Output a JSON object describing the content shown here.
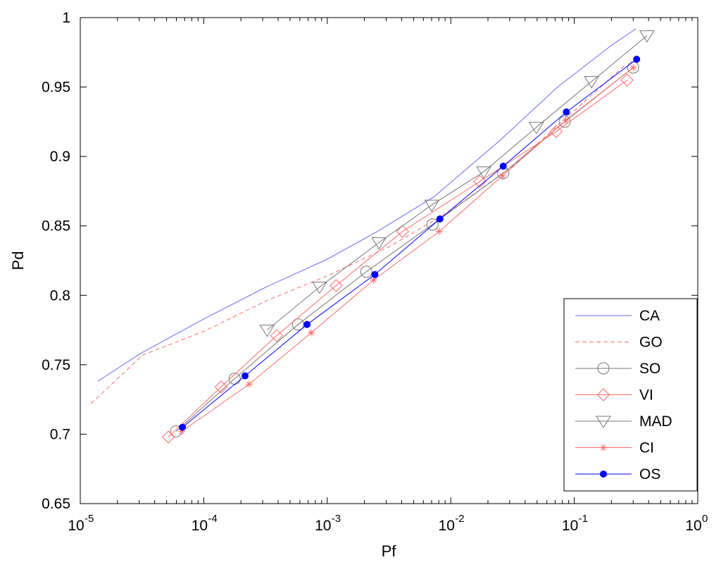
{
  "chart_data": {
    "type": "line",
    "title": "",
    "xlabel": "Pf",
    "ylabel": "Pd",
    "x_scale": "log",
    "xlim": [
      1e-05,
      1
    ],
    "ylim": [
      0.65,
      1
    ],
    "x_ticks": [
      1e-05,
      0.0001,
      0.001,
      0.01,
      0.1,
      1
    ],
    "x_tick_labels": [
      {
        "base": "10",
        "exp": "-5"
      },
      {
        "base": "10",
        "exp": "-4"
      },
      {
        "base": "10",
        "exp": "-3"
      },
      {
        "base": "10",
        "exp": "-2"
      },
      {
        "base": "10",
        "exp": "-1"
      },
      {
        "base": "10",
        "exp": "0"
      }
    ],
    "y_ticks": [
      0.65,
      0.7,
      0.75,
      0.8,
      0.85,
      0.9,
      0.95,
      1
    ],
    "y_tick_labels": [
      "0.65",
      "0.7",
      "0.75",
      "0.8",
      "0.85",
      "0.9",
      "0.95",
      "1"
    ],
    "grid": false,
    "legend_position": "bottom-right",
    "series": [
      {
        "name": "CA",
        "color": "#6a6aff",
        "dash": "",
        "marker": "none",
        "x": [
          1.38e-05,
          3.06e-05,
          0.0001,
          0.00032,
          0.001,
          0.00255,
          0.00733,
          0.0246,
          0.0733,
          0.2,
          0.316
        ],
        "y": [
          0.738,
          0.758,
          0.783,
          0.806,
          0.826,
          0.846,
          0.871,
          0.911,
          0.95,
          0.98,
          0.992
        ]
      },
      {
        "name": "GO",
        "color": "#ff6a6a",
        "dash": "6,4",
        "marker": "none",
        "x": [
          1.22e-05,
          3.2e-05,
          0.0001,
          0.00032,
          0.001,
          0.00318,
          0.01,
          0.0318,
          0.1,
          0.26
        ],
        "y": [
          0.722,
          0.757,
          0.774,
          0.796,
          0.814,
          0.835,
          0.861,
          0.893,
          0.933,
          0.966
        ]
      },
      {
        "name": "SO",
        "color": "#777777",
        "dash": "",
        "marker": "circle",
        "x": [
          5.97e-05,
          0.000178,
          0.00058,
          0.00207,
          0.00711,
          0.0266,
          0.0837,
          0.3
        ],
        "y": [
          0.702,
          0.74,
          0.779,
          0.817,
          0.851,
          0.888,
          0.925,
          0.964
        ]
      },
      {
        "name": "VI",
        "color": "#ff6a6a",
        "dash": "",
        "marker": "diamond",
        "x": [
          5.17e-05,
          0.000138,
          0.000389,
          0.00118,
          0.00407,
          0.0172,
          0.0714,
          0.268
        ],
        "y": [
          0.698,
          0.734,
          0.771,
          0.807,
          0.846,
          0.882,
          0.918,
          0.955
        ]
      },
      {
        "name": "MAD",
        "color": "#777777",
        "dash": "",
        "marker": "triangle-down",
        "x": [
          0.000326,
          0.000867,
          0.00262,
          0.00702,
          0.0185,
          0.0493,
          0.138,
          0.388
        ],
        "y": [
          0.775,
          0.806,
          0.838,
          0.865,
          0.889,
          0.921,
          0.954,
          0.987
        ]
      },
      {
        "name": "CI",
        "color": "#ff6a6a",
        "dash": "",
        "marker": "star",
        "x": [
          6.63e-05,
          0.000233,
          0.000741,
          0.00237,
          0.00807,
          0.0262,
          0.0853,
          0.3
        ],
        "y": [
          0.702,
          0.736,
          0.773,
          0.811,
          0.846,
          0.886,
          0.926,
          0.964
        ]
      },
      {
        "name": "OS",
        "color": "#0000ff",
        "dash": "",
        "marker": "dot",
        "x": [
          6.72e-05,
          0.000216,
          0.000686,
          0.00243,
          0.00816,
          0.0266,
          0.0863,
          0.32
        ],
        "y": [
          0.705,
          0.742,
          0.779,
          0.815,
          0.855,
          0.893,
          0.932,
          0.97
        ]
      }
    ]
  }
}
